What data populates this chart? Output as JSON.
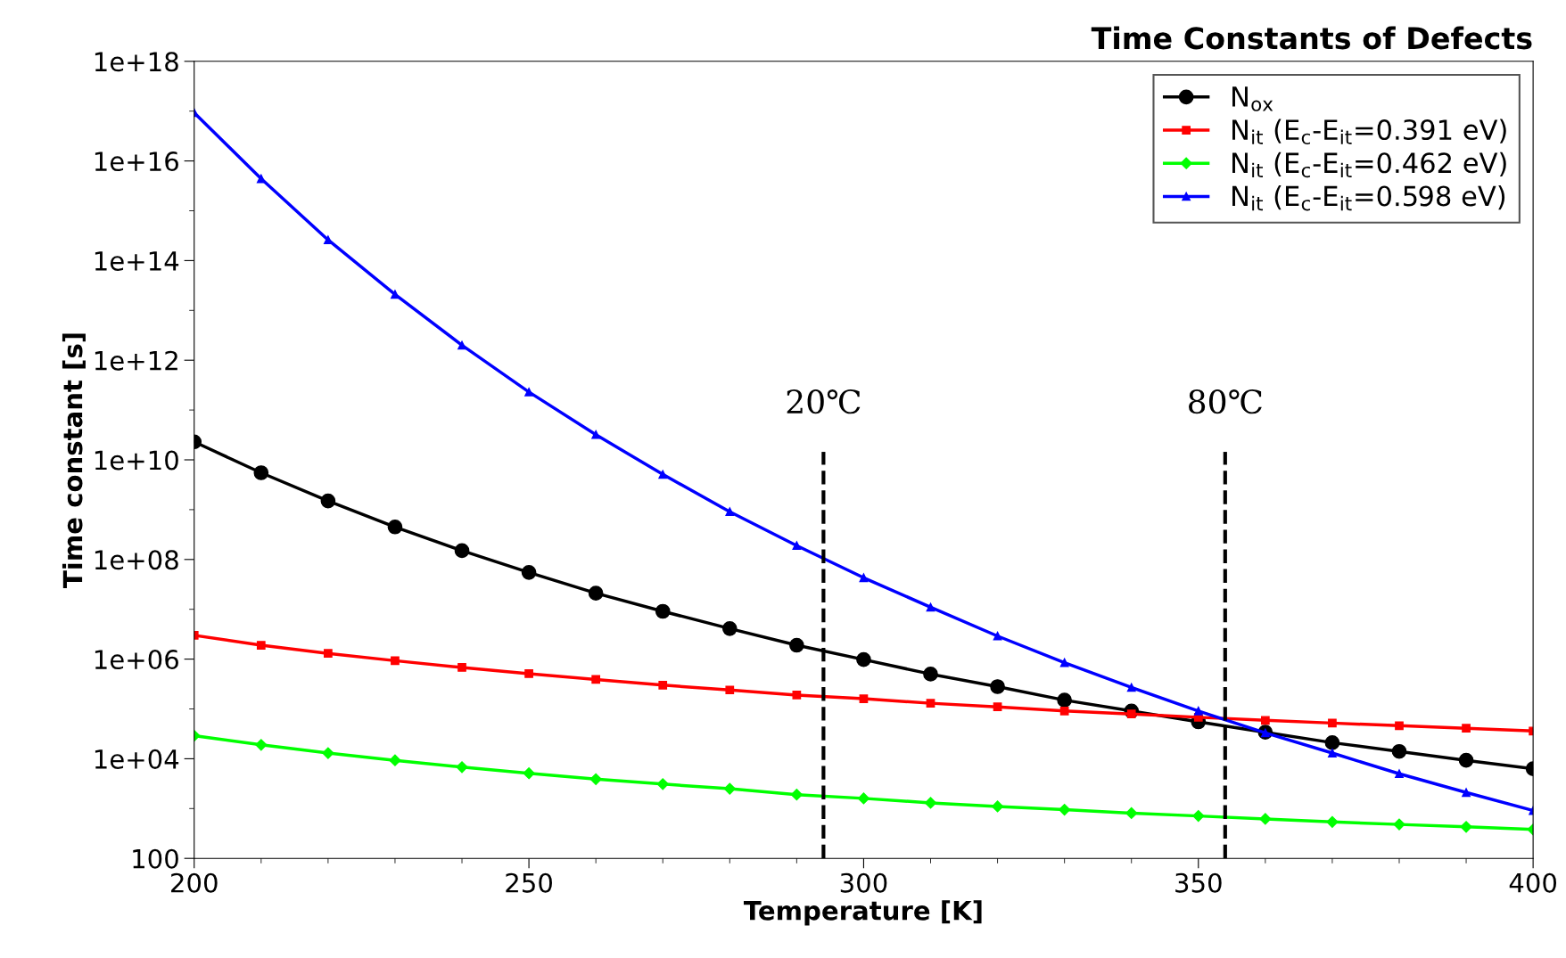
{
  "chart_data": {
    "type": "line",
    "title": "Time Constants of Defects",
    "xlabel": "Temperature [K]",
    "ylabel": "Time constant [s]",
    "x": [
      200,
      210,
      220,
      230,
      240,
      250,
      260,
      270,
      280,
      290,
      300,
      310,
      320,
      330,
      340,
      350,
      360,
      370,
      380,
      390,
      400
    ],
    "series": [
      {
        "name": "N$_{ox}$",
        "color": "#000000",
        "marker": "circle",
        "values": [
          23000000000.0,
          5500000000.0,
          1500000000.0,
          450000000.0,
          150000000.0,
          55000000.0,
          21000000.0,
          9100000.0,
          4100000.0,
          1900000.0,
          980000.0,
          500000.0,
          280000.0,
          150000.0,
          91000.0,
          55000.0,
          34000.0,
          21000.0,
          14000.0,
          9300.0,
          6300.0
        ]
      },
      {
        "name": "N$_{it}$ (E$_{c}$-E$_{it}$=0.391 eV)",
        "color": "#ff0000",
        "marker": "square",
        "values": [
          3000000.0,
          1900000.0,
          1300000.0,
          930000.0,
          680000.0,
          510000.0,
          390000.0,
          300000.0,
          240000.0,
          190000.0,
          160000.0,
          130000.0,
          110000.0,
          91000.0,
          79000.0,
          68000.0,
          59000.0,
          52000.0,
          46000.0,
          41000.0,
          36000.0
        ]
      },
      {
        "name": "N$_{it}$ (E$_{c}$-E$_{it}$=0.462 eV)",
        "color": "#00ff00",
        "marker": "diamond",
        "values": [
          29000.0,
          19000.0,
          13000.0,
          9300.0,
          6800.0,
          5100.0,
          3900.0,
          3100.0,
          2500.0,
          1900.0,
          1600.0,
          1300.0,
          1100.0,
          950,
          810,
          710,
          620,
          540,
          480,
          430,
          380
        ]
      },
      {
        "name": "N$_{it}$ (E$_{c}$-E$_{it}$=0.598 eV)",
        "color": "#0000ff",
        "marker": "triangle",
        "values": [
          9.3e+16,
          4400000000000000.0,
          260000000000000.0,
          21000000000000.0,
          2000000000000.0,
          230000000000.0,
          32000000000.0,
          5100000000.0,
          910000000.0,
          190000000.0,
          43000000.0,
          11000000.0,
          2900000.0,
          850000.0,
          270000.0,
          91000.0,
          33000.0,
          13000.0,
          5000.0,
          2100.0,
          910
        ]
      }
    ],
    "log": "y",
    "xlim": [
      200,
      400
    ],
    "ylim": [
      100,
      1e+18
    ],
    "xticks": [
      200,
      {
        "value": 210,
        "label": null
      },
      {
        "value": 220,
        "label": null
      },
      {
        "value": 230,
        "label": null
      },
      {
        "value": 240,
        "label": null
      },
      250,
      {
        "value": 260,
        "label": null
      },
      {
        "value": 270,
        "label": null
      },
      {
        "value": 280,
        "label": null
      },
      {
        "value": 290,
        "label": null
      },
      300,
      {
        "value": 310,
        "label": null
      },
      {
        "value": 320,
        "label": null
      },
      {
        "value": 330,
        "label": null
      },
      {
        "value": 340,
        "label": null
      },
      350,
      {
        "value": 360,
        "label": null
      },
      {
        "value": 370,
        "label": null
      },
      {
        "value": 380,
        "label": null
      },
      {
        "value": 390,
        "label": null
      },
      400
    ],
    "yticks": [
      100,
      {
        "value": 1000,
        "label": null
      },
      {
        "value": 10000.0,
        "label": "1e+04"
      },
      {
        "value": 100000.0,
        "label": null
      },
      {
        "value": 1000000.0,
        "label": "1e+06"
      },
      {
        "value": 10000000.0,
        "label": null
      },
      {
        "value": 100000000.0,
        "label": "1e+08"
      },
      {
        "value": 1000000000.0,
        "label": null
      },
      {
        "value": 10000000000.0,
        "label": "1e+10"
      },
      {
        "value": 100000000000.0,
        "label": null
      },
      {
        "value": 1000000000000.0,
        "label": "1e+12"
      },
      {
        "value": 10000000000000.0,
        "label": null
      },
      {
        "value": 100000000000000.0,
        "label": "1e+14"
      },
      {
        "value": 1000000000000000.0,
        "label": null
      },
      {
        "value": 1e+16,
        "label": "1e+16"
      },
      {
        "value": 1e+17,
        "label": null
      },
      {
        "value": 1e+18,
        "label": "1e+18"
      }
    ],
    "ref_lines": [
      {
        "axis": "x",
        "value": 294,
        "label": "20℃",
        "color": "#000000",
        "line_style": "dashed"
      },
      {
        "axis": "x",
        "value": 354,
        "label": "80℃",
        "color": "#000000",
        "line_style": "dashed"
      }
    ],
    "grid": false,
    "legend": "top right",
    "line_style": "solid"
  }
}
